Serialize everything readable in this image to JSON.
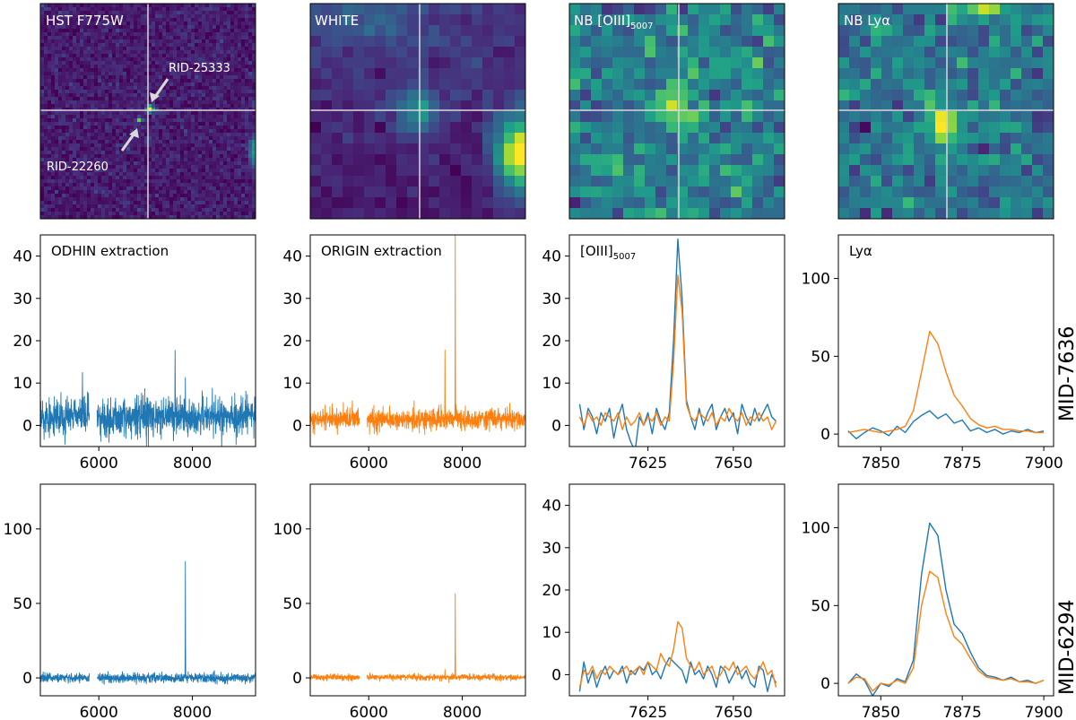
{
  "colors": {
    "series_odhin": "#1f77b4",
    "series_origin": "#ff7f0e",
    "crosshair": "#d9d9d9",
    "viridis_dark": "#440154",
    "viridis_mid": "#21918c",
    "viridis_bright": "#fde725"
  },
  "image_panels": [
    {
      "id": "hst",
      "title": "HST F775W",
      "annotations": [
        {
          "label": "RID-25333"
        },
        {
          "label": "RID-22260"
        }
      ]
    },
    {
      "id": "white",
      "title": "WHITE"
    },
    {
      "id": "oiii_nb",
      "title_main": "NB [OIII]",
      "title_sub": "5007"
    },
    {
      "id": "lya_nb",
      "title": "NB Lyα"
    }
  ],
  "row_labels": [
    "MID-7636",
    "MID-6294"
  ],
  "chart_data": [
    {
      "type": "line",
      "row": "MID-7636",
      "title": "ODHIN extraction",
      "series": [
        {
          "name": "ODHIN",
          "color": "#1f77b4",
          "noise_sigma": 2.2,
          "offset": 2.0,
          "peaks": [
            {
              "x": 5650,
              "y": 10.5
            },
            {
              "x": 7630,
              "y": 20.5
            },
            {
              "x": 7850,
              "y": 12.8
            },
            {
              "x": 7560,
              "y": 8
            }
          ]
        }
      ],
      "xlim": [
        4750,
        9350
      ],
      "ylim": [
        -5,
        45
      ],
      "xticks": [
        6000,
        8000
      ],
      "xtick_labels": [
        "6000",
        "8000"
      ],
      "yticks": [
        0,
        10,
        20,
        30,
        40
      ],
      "ytick_labels": [
        "0",
        "10",
        "20",
        "30",
        "40"
      ]
    },
    {
      "type": "line",
      "row": "MID-7636",
      "title": "ORIGIN extraction",
      "series": [
        {
          "name": "ORIGIN",
          "color": "#ff7f0e",
          "noise_sigma": 1.2,
          "offset": 1.5,
          "peaks": [
            {
              "x": 5650,
              "y": 8
            },
            {
              "x": 7630,
              "y": 17
            },
            {
              "x": 7850,
              "y": 46
            },
            {
              "x": 7500,
              "y": 6
            }
          ]
        }
      ],
      "xlim": [
        4750,
        9350
      ],
      "ylim": [
        -5,
        45
      ],
      "xticks": [
        6000,
        8000
      ],
      "xtick_labels": [
        "6000",
        "8000"
      ],
      "yticks": [
        0,
        10,
        20,
        30,
        40
      ],
      "ytick_labels": [
        "0",
        "10",
        "20",
        "30",
        "40"
      ]
    },
    {
      "type": "line",
      "row": "MID-7636",
      "title_main": "[OIII]",
      "title_sub": "5007",
      "series": [
        {
          "name": "ODHIN",
          "color": "#1f77b4",
          "x": [
            7605,
            7606.25,
            7607.5,
            7608.75,
            7610,
            7611.25,
            7612.5,
            7613.75,
            7615,
            7616.25,
            7617.5,
            7618.75,
            7620,
            7621.25,
            7622.5,
            7623.75,
            7625,
            7626.25,
            7627.5,
            7628.75,
            7630,
            7631.25,
            7632.5,
            7633.75,
            7635,
            7636.25,
            7637.5,
            7638.75,
            7640,
            7641.25,
            7642.5,
            7643.75,
            7645,
            7646.25,
            7647.5,
            7648.75,
            7650,
            7651.25,
            7652.5,
            7653.75,
            7655,
            7656.25,
            7657.5,
            7658.75,
            7660,
            7661.25,
            7662.5
          ],
          "y": [
            5,
            -1,
            4,
            2,
            -2,
            3,
            1,
            4,
            -3,
            2,
            5,
            -1,
            -4,
            -6,
            2,
            0,
            3,
            -2,
            4,
            1,
            -1,
            3,
            20,
            44,
            30,
            6,
            2,
            -1,
            4,
            0,
            3,
            5,
            -1,
            2,
            4,
            1,
            3,
            -2,
            5,
            2,
            0,
            4,
            1,
            3,
            5,
            2,
            1
          ]
        },
        {
          "name": "ORIGIN",
          "color": "#ff7f0e",
          "x": [
            7605,
            7606.25,
            7607.5,
            7608.75,
            7610,
            7611.25,
            7612.5,
            7613.75,
            7615,
            7616.25,
            7617.5,
            7618.75,
            7620,
            7621.25,
            7622.5,
            7623.75,
            7625,
            7626.25,
            7627.5,
            7628.75,
            7630,
            7631.25,
            7632.5,
            7633.75,
            7635,
            7636.25,
            7637.5,
            7638.75,
            7640,
            7641.25,
            7642.5,
            7643.75,
            7645,
            7646.25,
            7647.5,
            7648.75,
            7650,
            7651.25,
            7652.5,
            7653.75,
            7655,
            7656.25,
            7657.5,
            7658.75,
            7660,
            7661.25,
            7662.5
          ],
          "y": [
            2,
            0,
            3,
            1,
            2,
            0,
            3,
            2,
            1,
            3,
            -1,
            2,
            0,
            1,
            3,
            0,
            2,
            1,
            3,
            0,
            2,
            1,
            15,
            35.5,
            27,
            5,
            2,
            1,
            3,
            2,
            1,
            3,
            0,
            2,
            1,
            4,
            2,
            1,
            3,
            0,
            2,
            1,
            3,
            1,
            2,
            -1,
            1
          ]
        }
      ],
      "xlim": [
        7602,
        7665
      ],
      "ylim": [
        -5,
        45
      ],
      "xticks": [
        7625,
        7650
      ],
      "xtick_labels": [
        "7625",
        "7650"
      ],
      "yticks": [
        0,
        10,
        20,
        30,
        40
      ],
      "ytick_labels": [
        "0",
        "10",
        "20",
        "30",
        "40"
      ]
    },
    {
      "type": "line",
      "row": "MID-7636",
      "title": "Lyα",
      "series": [
        {
          "name": "ODHIN",
          "color": "#1f77b4",
          "x": [
            7840,
            7842.5,
            7845,
            7847.5,
            7850,
            7852.5,
            7855,
            7857.5,
            7860,
            7862.5,
            7865,
            7867.5,
            7870,
            7872.5,
            7875,
            7877.5,
            7880,
            7882.5,
            7885,
            7887.5,
            7890,
            7892.5,
            7895,
            7897.5,
            7900
          ],
          "y": [
            2,
            -3,
            1,
            4,
            2,
            -1,
            5,
            1,
            8,
            12,
            15,
            10,
            13,
            7,
            9,
            2,
            4,
            1,
            3,
            0,
            2,
            1,
            3,
            1,
            2
          ]
        },
        {
          "name": "ORIGIN",
          "color": "#ff7f0e",
          "x": [
            7840,
            7842.5,
            7845,
            7847.5,
            7850,
            7852.5,
            7855,
            7857.5,
            7860,
            7862.5,
            7865,
            7867.5,
            7870,
            7872.5,
            7875,
            7877.5,
            7880,
            7882.5,
            7885,
            7887.5,
            7890,
            7892.5,
            7895,
            7897.5,
            7900
          ],
          "y": [
            1,
            2,
            3,
            2,
            1,
            2,
            3,
            5,
            15,
            40,
            66,
            58,
            40,
            25,
            18,
            10,
            6,
            4,
            5,
            3,
            3,
            2,
            2,
            1,
            1
          ]
        }
      ],
      "xlim": [
        7837,
        7903
      ],
      "ylim": [
        -8,
        128
      ],
      "xticks": [
        7850,
        7875,
        7900
      ],
      "xtick_labels": [
        "7850",
        "7875",
        "7900"
      ],
      "yticks": [
        0,
        50,
        100
      ],
      "ytick_labels": [
        "0",
        "50",
        "100"
      ]
    },
    {
      "type": "line",
      "row": "MID-6294",
      "series": [
        {
          "name": "ODHIN",
          "color": "#1f77b4",
          "noise_sigma": 1.6,
          "offset": 0,
          "peaks": [
            {
              "x": 7850,
              "y": 80
            }
          ]
        }
      ],
      "xlim": [
        4750,
        9350
      ],
      "ylim": [
        -12,
        130
      ],
      "xticks": [
        6000,
        8000
      ],
      "xtick_labels": [
        "6000",
        "8000"
      ],
      "yticks": [
        0,
        50,
        100
      ],
      "ytick_labels": [
        "0",
        "50",
        "100"
      ]
    },
    {
      "type": "line",
      "row": "MID-6294",
      "series": [
        {
          "name": "ORIGIN",
          "color": "#ff7f0e",
          "noise_sigma": 1.0,
          "offset": 0.5,
          "peaks": [
            {
              "x": 7850,
              "y": 57
            },
            {
              "x": 7630,
              "y": 6
            }
          ]
        }
      ],
      "xlim": [
        4750,
        9350
      ],
      "ylim": [
        -12,
        130
      ],
      "xticks": [
        6000,
        8000
      ],
      "xtick_labels": [
        "6000",
        "8000"
      ],
      "yticks": [
        0,
        50,
        100
      ],
      "ytick_labels": [
        "0",
        "50",
        "100"
      ]
    },
    {
      "type": "line",
      "row": "MID-6294",
      "series": [
        {
          "name": "ODHIN",
          "color": "#1f77b4",
          "x": [
            7605,
            7606.25,
            7607.5,
            7608.75,
            7610,
            7611.25,
            7612.5,
            7613.75,
            7615,
            7616.25,
            7617.5,
            7618.75,
            7620,
            7621.25,
            7622.5,
            7623.75,
            7625,
            7626.25,
            7627.5,
            7628.75,
            7630,
            7631.25,
            7632.5,
            7633.75,
            7635,
            7636.25,
            7637.5,
            7638.75,
            7640,
            7641.25,
            7642.5,
            7643.75,
            7645,
            7646.25,
            7647.5,
            7648.75,
            7650,
            7651.25,
            7652.5,
            7653.75,
            7655,
            7656.25,
            7657.5,
            7658.75,
            7660,
            7661.25,
            7662.5
          ],
          "y": [
            -4,
            3,
            -2,
            1,
            -3,
            0,
            2,
            -1,
            1,
            0,
            2,
            -2,
            1,
            0,
            2,
            1,
            3,
            0,
            1,
            -1,
            2,
            4,
            3,
            2,
            1,
            -2,
            3,
            0,
            1,
            -1,
            2,
            0,
            -3,
            2,
            1,
            -2,
            0,
            2,
            -1,
            1,
            -2,
            -3,
            2,
            1,
            -4,
            0,
            -2
          ]
        },
        {
          "name": "ORIGIN",
          "color": "#ff7f0e",
          "x": [
            7605,
            7606.25,
            7607.5,
            7608.75,
            7610,
            7611.25,
            7612.5,
            7613.75,
            7615,
            7616.25,
            7617.5,
            7618.75,
            7620,
            7621.25,
            7622.5,
            7623.75,
            7625,
            7626.25,
            7627.5,
            7628.75,
            7630,
            7631.25,
            7632.5,
            7633.75,
            7635,
            7636.25,
            7637.5,
            7638.75,
            7640,
            7641.25,
            7642.5,
            7643.75,
            7645,
            7646.25,
            7647.5,
            7648.75,
            7650,
            7651.25,
            7652.5,
            7653.75,
            7655,
            7656.25,
            7657.5,
            7658.75,
            7660,
            7661.25,
            7662.5
          ],
          "y": [
            -3,
            1,
            0,
            2,
            -1,
            1,
            0,
            2,
            1,
            0,
            1,
            2,
            0,
            1,
            2,
            0,
            3,
            2,
            1,
            5,
            3,
            2,
            6,
            12.5,
            11,
            4,
            2,
            1,
            3,
            0,
            1,
            2,
            -1,
            0,
            2,
            1,
            3,
            0,
            1,
            2,
            0,
            -1,
            1,
            3,
            0,
            1,
            -3
          ]
        }
      ],
      "xlim": [
        7602,
        7665
      ],
      "ylim": [
        -5,
        45
      ],
      "xticks": [
        7625,
        7650
      ],
      "xtick_labels": [
        "7625",
        "7650"
      ],
      "yticks": [
        0,
        10,
        20,
        30,
        40
      ],
      "ytick_labels": [
        "0",
        "10",
        "20",
        "30",
        "40"
      ]
    },
    {
      "type": "line",
      "row": "MID-6294",
      "series": [
        {
          "name": "ODHIN",
          "color": "#1f77b4",
          "x": [
            7840,
            7842.5,
            7845,
            7847.5,
            7850,
            7852.5,
            7855,
            7857.5,
            7860,
            7862.5,
            7865,
            7867.5,
            7870,
            7872.5,
            7875,
            7877.5,
            7880,
            7882.5,
            7885,
            7887.5,
            7890,
            7892.5,
            7895,
            7897.5,
            7900
          ],
          "y": [
            0,
            6,
            2,
            -8,
            0,
            -2,
            3,
            1,
            15,
            70,
            103,
            95,
            60,
            38,
            32,
            20,
            10,
            5,
            4,
            2,
            4,
            1,
            2,
            0,
            2
          ]
        },
        {
          "name": "ORIGIN",
          "color": "#ff7f0e",
          "x": [
            7840,
            7842.5,
            7845,
            7847.5,
            7850,
            7852.5,
            7855,
            7857.5,
            7860,
            7862.5,
            7865,
            7867.5,
            7870,
            7872.5,
            7875,
            7877.5,
            7880,
            7882.5,
            7885,
            7887.5,
            7890,
            7892.5,
            7895,
            7897.5,
            7900
          ],
          "y": [
            0,
            4,
            3,
            -5,
            0,
            -1,
            2,
            0,
            10,
            50,
            72,
            68,
            45,
            30,
            25,
            16,
            8,
            4,
            3,
            2,
            3,
            1,
            1,
            0,
            2
          ]
        }
      ],
      "xlim": [
        7837,
        7903
      ],
      "ylim": [
        -8,
        128
      ],
      "xticks": [
        7850,
        7875,
        7900
      ],
      "xtick_labels": [
        "7850",
        "7875",
        "7900"
      ],
      "yticks": [
        0,
        50,
        100
      ],
      "ytick_labels": [
        "0",
        "50",
        "100"
      ]
    }
  ]
}
